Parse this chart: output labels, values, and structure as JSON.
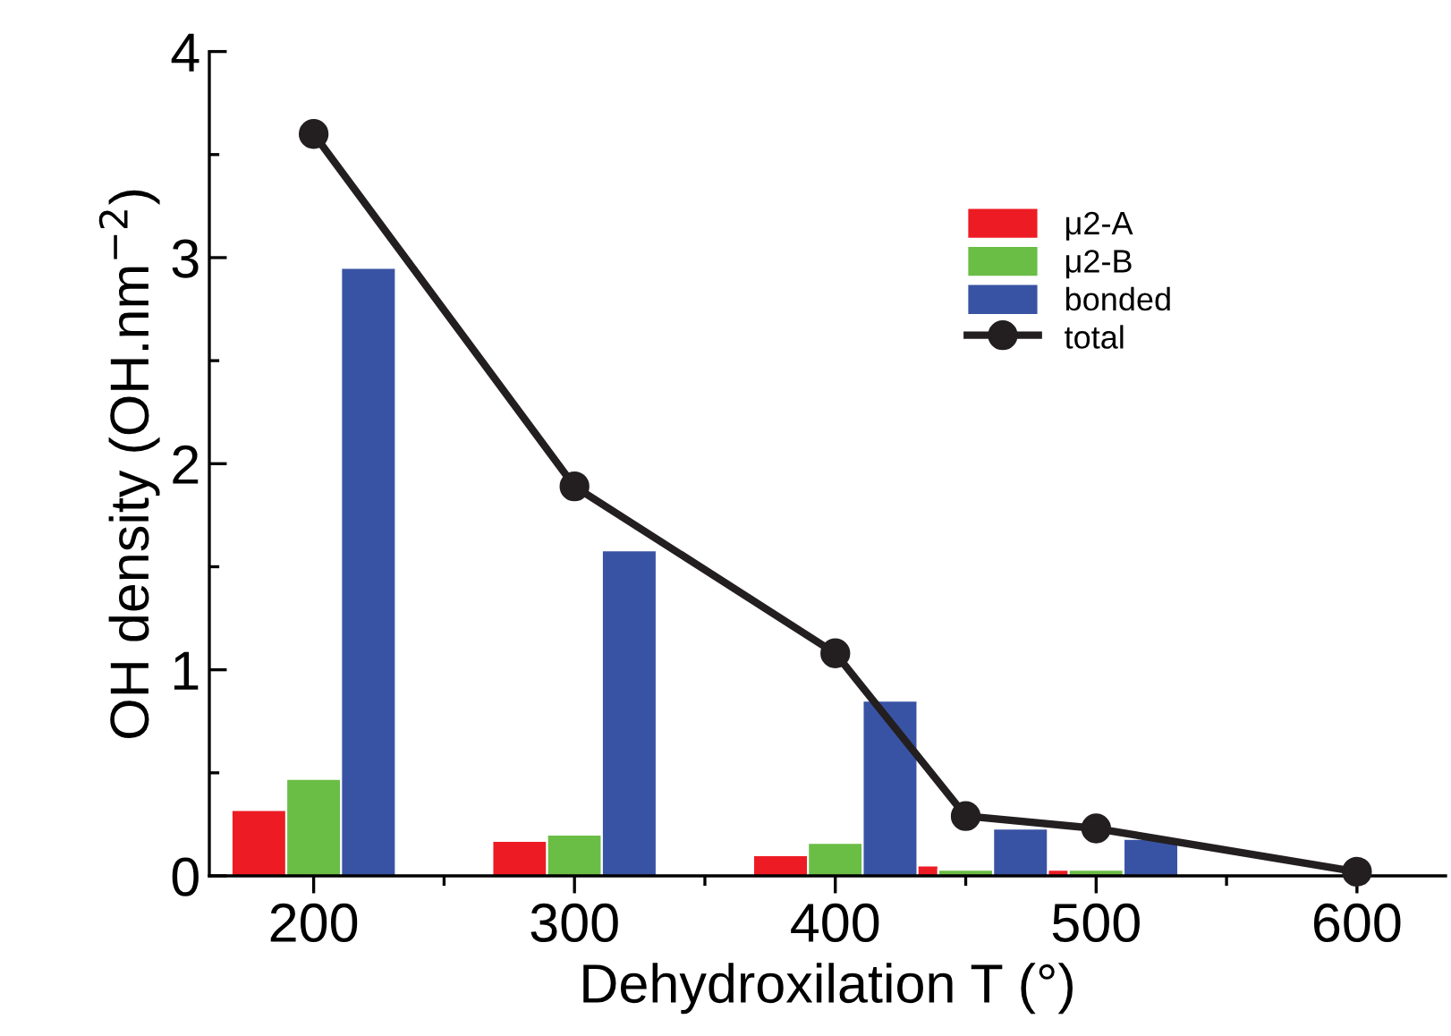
{
  "chart_data": {
    "type": "bar",
    "xlabel": "Dehydroxilation T (°)",
    "ylabel": "OH density (OH.nm$^{−2}$)",
    "xlim": [
      160,
      634
    ],
    "xticks": [
      200,
      300,
      400,
      500,
      600
    ],
    "ylim": [
      0,
      4
    ],
    "yticks": [
      0,
      1,
      2,
      3,
      4
    ],
    "grid": false,
    "legend": "top right",
    "series": [
      {
        "name": "μ2-A",
        "color": "#ed1c24",
        "x": [
          179,
          279,
          379,
          429,
          479
        ],
        "values": [
          0.32,
          0.17,
          0.1,
          0.05,
          0.03
        ]
      },
      {
        "name": "μ2-B",
        "color": "#6abd45",
        "x": [
          200,
          300,
          400,
          450,
          500
        ],
        "values": [
          0.47,
          0.2,
          0.16,
          0.03,
          0.03
        ]
      },
      {
        "name": "bonded",
        "color": "#3953a4",
        "x": [
          221,
          321,
          421,
          471,
          521
        ],
        "values": [
          2.95,
          1.58,
          0.85,
          0.23,
          0.18
        ]
      },
      {
        "name": "total",
        "type": "line",
        "color": "#231f20",
        "marker": "circle",
        "line_style": "solid",
        "x": [
          200,
          300,
          400,
          450,
          500,
          600
        ],
        "values": [
          3.6,
          1.89,
          1.08,
          0.29,
          0.23,
          0.02
        ]
      }
    ]
  }
}
